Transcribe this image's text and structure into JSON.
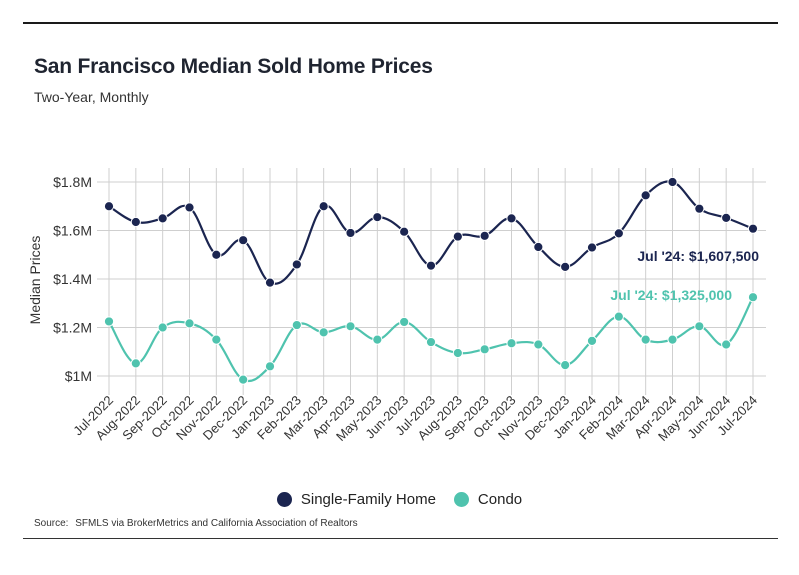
{
  "header": {
    "title": "San Francisco Median Sold Home Prices",
    "subtitle": "Two-Year, Monthly"
  },
  "colors": {
    "single_family": "#1b2550",
    "condo": "#4fc3ae",
    "grid": "#cfcfcf",
    "rule": "#1a1a1a"
  },
  "legend": {
    "items": [
      {
        "label": "Single-Family Home",
        "color_key": "single_family"
      },
      {
        "label": "Condo",
        "color_key": "condo"
      }
    ]
  },
  "source": {
    "prefix": "Source:",
    "text": "SFMLS via BrokerMetrics and California Association of Realtors"
  },
  "chart_data": {
    "type": "line",
    "title": "San Francisco Median Sold Home Prices",
    "subtitle": "Two-Year, Monthly",
    "xlabel": "",
    "ylabel": "Median Prices",
    "ylim": [
      900000,
      1850000
    ],
    "yticks": [
      1000000,
      1200000,
      1400000,
      1600000,
      1800000
    ],
    "ytick_labels": [
      "$1M",
      "$1.2M",
      "$1.4M",
      "$1.6M",
      "$1.8M"
    ],
    "grid": true,
    "legend_position": "bottom-center",
    "categories": [
      "Jul-2022",
      "Aug-2022",
      "Sep-2022",
      "Oct-2022",
      "Nov-2022",
      "Dec-2022",
      "Jan-2023",
      "Feb-2023",
      "Mar-2023",
      "Apr-2023",
      "May-2023",
      "Jun-2023",
      "Jul-2023",
      "Aug-2023",
      "Sep-2023",
      "Oct-2023",
      "Nov-2023",
      "Dec-2023",
      "Jan-2024",
      "Feb-2024",
      "Mar-2024",
      "Apr-2024",
      "May-2024",
      "Jun-2024",
      "Jul-2024"
    ],
    "series": [
      {
        "name": "Single-Family Home",
        "color_key": "single_family",
        "values": [
          1700000,
          1635000,
          1650000,
          1695000,
          1500000,
          1560000,
          1385000,
          1460000,
          1700000,
          1590000,
          1655000,
          1595000,
          1455000,
          1575000,
          1578000,
          1650000,
          1532000,
          1450000,
          1530000,
          1588000,
          1745000,
          1800000,
          1690000,
          1652000,
          1607500
        ],
        "end_label": "Jul '24: $1,607,500"
      },
      {
        "name": "Condo",
        "color_key": "condo",
        "values": [
          1225000,
          1052000,
          1200000,
          1217000,
          1150000,
          985000,
          1040000,
          1210000,
          1180000,
          1205000,
          1150000,
          1223000,
          1140000,
          1095000,
          1110000,
          1135000,
          1130000,
          1045000,
          1145000,
          1245000,
          1150000,
          1150000,
          1205000,
          1130000,
          1325000
        ],
        "end_label": "Jul '24: $1,325,000"
      }
    ]
  }
}
